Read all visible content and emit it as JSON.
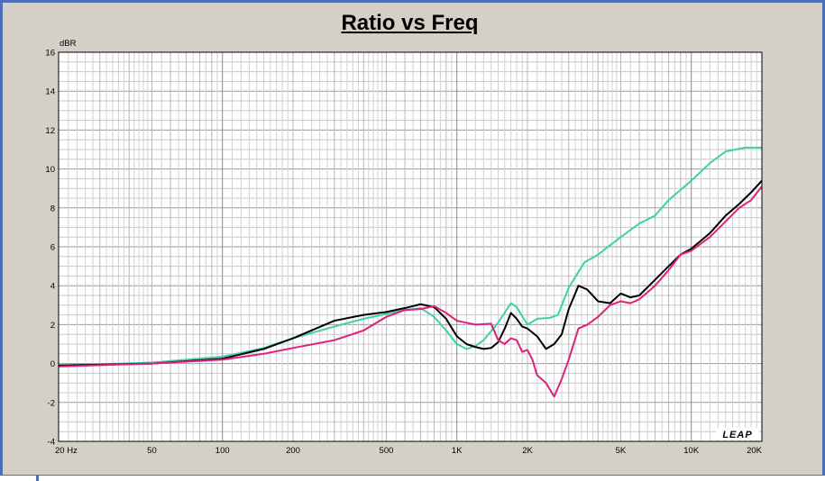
{
  "chart_data": {
    "type": "line",
    "title": "Ratio vs Freq",
    "ylabel": "dBR",
    "xscale": "log",
    "xlim": [
      20,
      20000
    ],
    "ylim": [
      -4,
      16
    ],
    "grid": true,
    "yticks": [
      16,
      14,
      12,
      10,
      8,
      6,
      4,
      2,
      0,
      -2,
      -4
    ],
    "xtick_values": [
      20,
      50,
      100,
      200,
      500,
      1000,
      2000,
      5000,
      10000,
      20000
    ],
    "xtick_labels": [
      "20 Hz",
      "50",
      "100",
      "200",
      "500",
      "1K",
      "2K",
      "5K",
      "10K",
      "20K"
    ],
    "watermark": "LEAP",
    "series": [
      {
        "color": "#40d0a8",
        "points": [
          [
            20,
            -0.1
          ],
          [
            50,
            0.05
          ],
          [
            100,
            0.35
          ],
          [
            150,
            0.8
          ],
          [
            200,
            1.3
          ],
          [
            300,
            1.9
          ],
          [
            400,
            2.3
          ],
          [
            500,
            2.55
          ],
          [
            600,
            2.75
          ],
          [
            700,
            2.85
          ],
          [
            800,
            2.4
          ],
          [
            900,
            1.7
          ],
          [
            1000,
            1.0
          ],
          [
            1100,
            0.75
          ],
          [
            1200,
            0.9
          ],
          [
            1300,
            1.2
          ],
          [
            1500,
            2.1
          ],
          [
            1700,
            3.1
          ],
          [
            1800,
            2.9
          ],
          [
            2000,
            2.0
          ],
          [
            2200,
            2.3
          ],
          [
            2500,
            2.35
          ],
          [
            2700,
            2.5
          ],
          [
            3000,
            3.9
          ],
          [
            3500,
            5.2
          ],
          [
            4000,
            5.6
          ],
          [
            5000,
            6.5
          ],
          [
            6000,
            7.2
          ],
          [
            7000,
            7.6
          ],
          [
            8000,
            8.4
          ],
          [
            10000,
            9.4
          ],
          [
            12000,
            10.3
          ],
          [
            14000,
            10.9
          ],
          [
            17000,
            11.1
          ],
          [
            20000,
            11.1
          ]
        ]
      },
      {
        "color": "#000000",
        "points": [
          [
            20,
            -0.1
          ],
          [
            50,
            0.0
          ],
          [
            100,
            0.25
          ],
          [
            150,
            0.75
          ],
          [
            200,
            1.3
          ],
          [
            300,
            2.2
          ],
          [
            400,
            2.5
          ],
          [
            500,
            2.65
          ],
          [
            600,
            2.85
          ],
          [
            700,
            3.05
          ],
          [
            800,
            2.9
          ],
          [
            900,
            2.3
          ],
          [
            1000,
            1.4
          ],
          [
            1100,
            1.0
          ],
          [
            1200,
            0.85
          ],
          [
            1300,
            0.75
          ],
          [
            1400,
            0.8
          ],
          [
            1500,
            1.1
          ],
          [
            1600,
            1.8
          ],
          [
            1700,
            2.6
          ],
          [
            1800,
            2.3
          ],
          [
            1900,
            1.9
          ],
          [
            2000,
            1.8
          ],
          [
            2200,
            1.4
          ],
          [
            2400,
            0.75
          ],
          [
            2600,
            1.0
          ],
          [
            2800,
            1.5
          ],
          [
            3000,
            2.8
          ],
          [
            3300,
            4.0
          ],
          [
            3600,
            3.8
          ],
          [
            4000,
            3.2
          ],
          [
            4500,
            3.1
          ],
          [
            5000,
            3.6
          ],
          [
            5500,
            3.4
          ],
          [
            6000,
            3.5
          ],
          [
            7000,
            4.3
          ],
          [
            8000,
            5.0
          ],
          [
            9000,
            5.6
          ],
          [
            10000,
            5.9
          ],
          [
            12000,
            6.7
          ],
          [
            14000,
            7.6
          ],
          [
            16000,
            8.2
          ],
          [
            18000,
            8.8
          ],
          [
            20000,
            9.4
          ]
        ]
      },
      {
        "color": "#e0207a",
        "points": [
          [
            20,
            -0.15
          ],
          [
            50,
            0.0
          ],
          [
            100,
            0.2
          ],
          [
            150,
            0.5
          ],
          [
            200,
            0.8
          ],
          [
            300,
            1.2
          ],
          [
            400,
            1.7
          ],
          [
            500,
            2.4
          ],
          [
            600,
            2.75
          ],
          [
            700,
            2.8
          ],
          [
            800,
            2.95
          ],
          [
            900,
            2.6
          ],
          [
            1000,
            2.2
          ],
          [
            1200,
            2.0
          ],
          [
            1400,
            2.05
          ],
          [
            1500,
            1.2
          ],
          [
            1600,
            1.0
          ],
          [
            1700,
            1.3
          ],
          [
            1800,
            1.2
          ],
          [
            1900,
            0.6
          ],
          [
            2000,
            0.7
          ],
          [
            2100,
            0.2
          ],
          [
            2200,
            -0.6
          ],
          [
            2400,
            -1.0
          ],
          [
            2600,
            -1.7
          ],
          [
            2800,
            -0.8
          ],
          [
            3000,
            0.2
          ],
          [
            3300,
            1.8
          ],
          [
            3600,
            2.0
          ],
          [
            4000,
            2.4
          ],
          [
            4500,
            3.0
          ],
          [
            5000,
            3.2
          ],
          [
            5500,
            3.1
          ],
          [
            6000,
            3.3
          ],
          [
            7000,
            4.0
          ],
          [
            8000,
            4.8
          ],
          [
            9000,
            5.6
          ],
          [
            10000,
            5.8
          ],
          [
            12000,
            6.5
          ],
          [
            14000,
            7.3
          ],
          [
            16000,
            8.0
          ],
          [
            18000,
            8.4
          ],
          [
            20000,
            9.1
          ]
        ]
      }
    ]
  }
}
